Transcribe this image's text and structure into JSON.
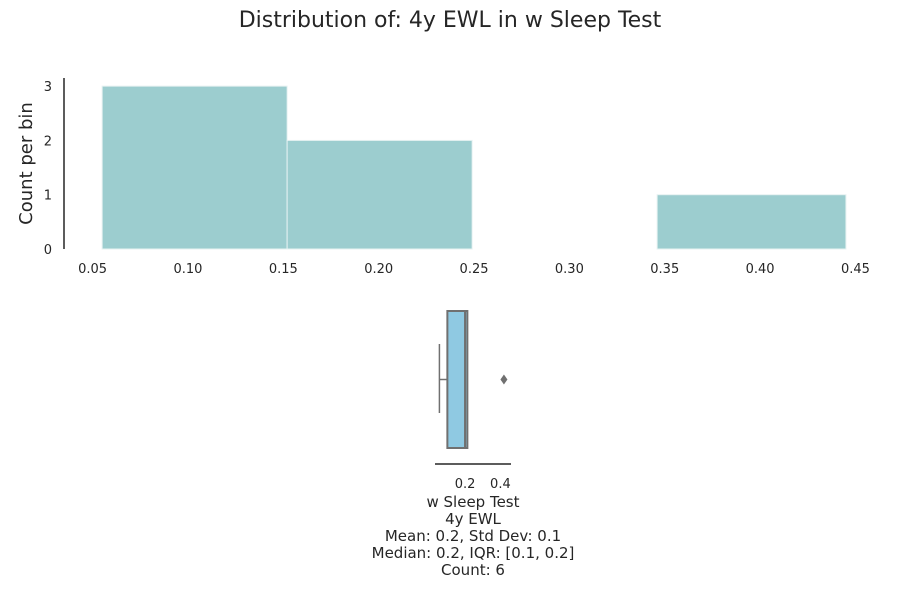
{
  "chart_data": [
    {
      "type": "histogram",
      "title": "Distribution of: 4y EWL in w Sleep Test",
      "xlabel": "",
      "ylabel": "Count per bin",
      "xlim": [
        0.035,
        0.455
      ],
      "ylim": [
        0,
        3.15
      ],
      "x_ticks": [
        0.05,
        0.1,
        0.15,
        0.2,
        0.25,
        0.3,
        0.35,
        0.4,
        0.45
      ],
      "y_ticks": [
        0,
        1,
        2,
        3
      ],
      "bins": [
        {
          "x0": 0.055,
          "x1": 0.152,
          "count": 3
        },
        {
          "x0": 0.152,
          "x1": 0.249,
          "count": 2
        },
        {
          "x0": 0.249,
          "x1": 0.346,
          "count": 0
        },
        {
          "x0": 0.346,
          "x1": 0.445,
          "count": 1
        }
      ],
      "colors": {
        "bar": "#9ccdcf",
        "bar_edge": "#e6f2f2",
        "axis": "#262626"
      },
      "grid": false
    },
    {
      "type": "boxplot",
      "xlim": [
        0.03,
        0.46
      ],
      "x_ticks": [
        0.2,
        0.4
      ],
      "box": {
        "whisker_low": 0.055,
        "q1": 0.1,
        "median": 0.2,
        "q3": 0.2,
        "whisker_high": 0.2
      },
      "outliers": [
        0.42
      ],
      "colors": {
        "box": "#8fc9e2",
        "edge": "#707070"
      }
    }
  ],
  "stats": {
    "lines": [
      "w Sleep Test",
      "4y EWL",
      "Mean: 0.2, Std Dev: 0.1",
      "Median: 0.2, IQR: [0.1, 0.2]",
      "Count: 6"
    ]
  }
}
